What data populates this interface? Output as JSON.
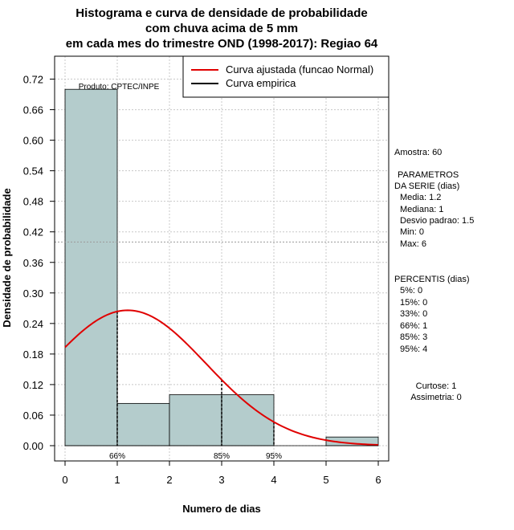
{
  "chart_data": {
    "type": "bar",
    "title_lines": [
      "Histograma e curva de densidade de probabilidade",
      "com chuva acima de 5 mm",
      "em cada mes do trimestre OND (1998-2017): Regiao 64"
    ],
    "xlabel": "Numero de dias",
    "ylabel": "Densidade de probabilidade",
    "xlim": [
      -0.2,
      6.2
    ],
    "ylim": [
      -0.03,
      0.765
    ],
    "x_ticks": [
      "0",
      "1",
      "2",
      "3",
      "4",
      "5",
      "6"
    ],
    "y_ticks": [
      "0.00",
      "0.06",
      "0.12",
      "0.18",
      "0.24",
      "0.30",
      "0.36",
      "0.42",
      "0.48",
      "0.54",
      "0.60",
      "0.66",
      "0.72"
    ],
    "grid": true,
    "bins": [
      {
        "from": 0,
        "to": 1,
        "density": 0.7
      },
      {
        "from": 1,
        "to": 2,
        "density": 0.083
      },
      {
        "from": 2,
        "to": 3,
        "density": 0.1
      },
      {
        "from": 3,
        "to": 4,
        "density": 0.1
      },
      {
        "from": 4,
        "to": 5,
        "density": 0.0
      },
      {
        "from": 5,
        "to": 6,
        "density": 0.017
      }
    ],
    "bar_color": "#b4cccc",
    "normal_curve": {
      "mean": 1.2,
      "sd": 1.5,
      "x_from": 0,
      "x_to": 6,
      "color": "#e00000"
    },
    "reference_line_y": 0.4,
    "percentile_markers": [
      {
        "x": 1,
        "label": "66%"
      },
      {
        "x": 3,
        "label": "85%"
      },
      {
        "x": 4,
        "label": "95%"
      }
    ],
    "product_label": "Produto: CPTEC/INPE",
    "legend": {
      "position": "top-right",
      "entries": [
        {
          "label": "Curva ajustada (funcao Normal)",
          "color": "#e00000"
        },
        {
          "label": "Curva empirica",
          "color": "#000000"
        }
      ]
    }
  },
  "side_panel": {
    "sample": "Amostra: 60",
    "params_title_1": "PARAMETROS",
    "params_title_2": "DA SERIE (dias)",
    "params": [
      "Media: 1.2",
      "Mediana: 1",
      "Desvio padrao: 1.5",
      "Min: 0",
      "Max: 6"
    ],
    "percentiles_title": "PERCENTIS (dias)",
    "percentiles": [
      "5%: 0",
      "15%: 0",
      "33%: 0",
      "66%: 1",
      "85%: 3",
      "95%: 4"
    ],
    "kurtosis": "Curtose: 1",
    "skewness": "Assimetria: 0"
  }
}
